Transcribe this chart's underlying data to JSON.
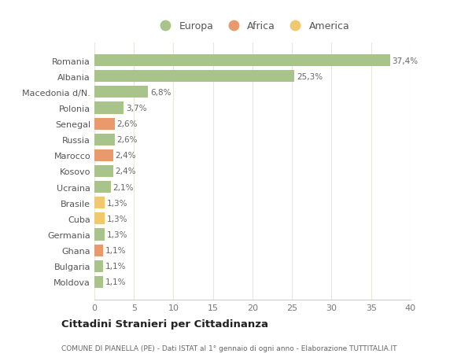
{
  "countries": [
    "Moldova",
    "Bulgaria",
    "Ghana",
    "Germania",
    "Cuba",
    "Brasile",
    "Ucraina",
    "Kosovo",
    "Marocco",
    "Russia",
    "Senegal",
    "Polonia",
    "Macedonia d/N.",
    "Albania",
    "Romania"
  ],
  "values": [
    1.1,
    1.1,
    1.1,
    1.3,
    1.3,
    1.3,
    2.1,
    2.4,
    2.4,
    2.6,
    2.6,
    3.7,
    6.8,
    25.3,
    37.4
  ],
  "labels": [
    "1,1%",
    "1,1%",
    "1,1%",
    "1,3%",
    "1,3%",
    "1,3%",
    "2,1%",
    "2,4%",
    "2,4%",
    "2,6%",
    "2,6%",
    "3,7%",
    "6,8%",
    "25,3%",
    "37,4%"
  ],
  "continents": [
    "Europa",
    "Europa",
    "Africa",
    "Europa",
    "America",
    "America",
    "Europa",
    "Europa",
    "Africa",
    "Europa",
    "Africa",
    "Europa",
    "Europa",
    "Europa",
    "Europa"
  ],
  "continent_colors": {
    "Europa": "#a8c48a",
    "Africa": "#e89a6d",
    "America": "#f0c96e"
  },
  "legend_items": [
    "Europa",
    "Africa",
    "America"
  ],
  "legend_colors": [
    "#a8c48a",
    "#e89a6d",
    "#f0c96e"
  ],
  "title": "Cittadini Stranieri per Cittadinanza",
  "subtitle": "COMUNE DI PIANELLA (PE) - Dati ISTAT al 1° gennaio di ogni anno - Elaborazione TUTTITALIA.IT",
  "xlim": [
    0,
    40
  ],
  "xticks": [
    0,
    5,
    10,
    15,
    20,
    25,
    30,
    35,
    40
  ],
  "background_color": "#ffffff",
  "grid_color": "#e8e8dc",
  "bar_height": 0.75
}
